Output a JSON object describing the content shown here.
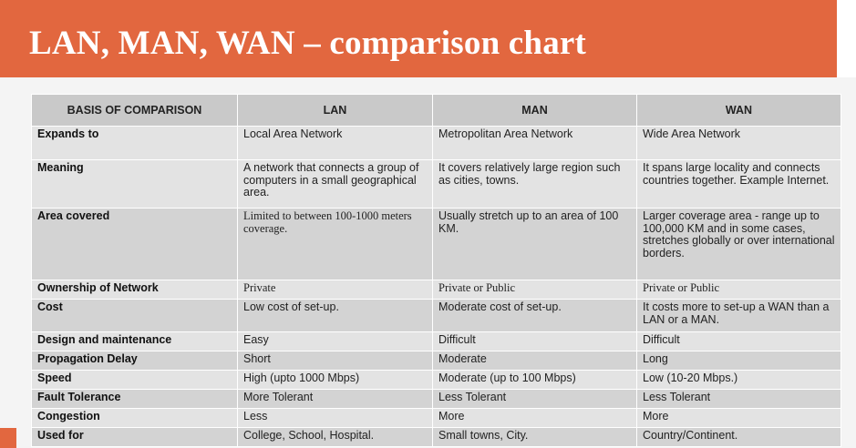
{
  "title": "LAN, MAN, WAN – comparison chart",
  "header": [
    "BASIS OF COMPARISON",
    "LAN",
    "MAN",
    "WAN"
  ],
  "rows": [
    {
      "basis": "Expands to",
      "lan": "Local Area Network",
      "man": "Metropolitan Area Network",
      "wan": "Wide Area Network"
    },
    {
      "basis": "Meaning",
      "lan": "A network that connects a group of computers in a small geographical area.",
      "man": "It covers relatively large region such as cities, towns.",
      "wan": "It spans large locality and connects countries together. Example Internet."
    },
    {
      "basis": "Area covered",
      "lan": "Limited to between 100-1000 meters coverage.",
      "man": "Usually stretch up to an area of 100 KM.",
      "wan": "Larger coverage area - range up to 100,000 KM and in some cases, stretches globally or over international borders."
    },
    {
      "basis": "Ownership of Network",
      "lan": "Private",
      "man": "Private or Public",
      "wan": "Private or Public"
    },
    {
      "basis": "Cost",
      "lan": "Low cost of set-up.",
      "man": "Moderate cost of set-up.",
      "wan": "It costs more to set-up a WAN than a LAN or a MAN."
    },
    {
      "basis": "Design and maintenance",
      "lan": "Easy",
      "man": "Difficult",
      "wan": "Difficult"
    },
    {
      "basis": "Propagation Delay",
      "lan": "Short",
      "man": "Moderate",
      "wan": "Long"
    },
    {
      "basis": "Speed",
      "lan": "High (upto 1000 Mbps)",
      "man": "Moderate (up to 100 Mbps)",
      "wan": "Low (10-20 Mbps.)"
    },
    {
      "basis": "Fault Tolerance",
      "lan": "More Tolerant",
      "man": "Less Tolerant",
      "wan": "Less Tolerant"
    },
    {
      "basis": "Congestion",
      "lan": "Less",
      "man": "More",
      "wan": "More"
    },
    {
      "basis": "Used for",
      "lan": "College, School, Hospital.",
      "man": "Small towns, City.",
      "wan": "Country/Continent."
    }
  ]
}
